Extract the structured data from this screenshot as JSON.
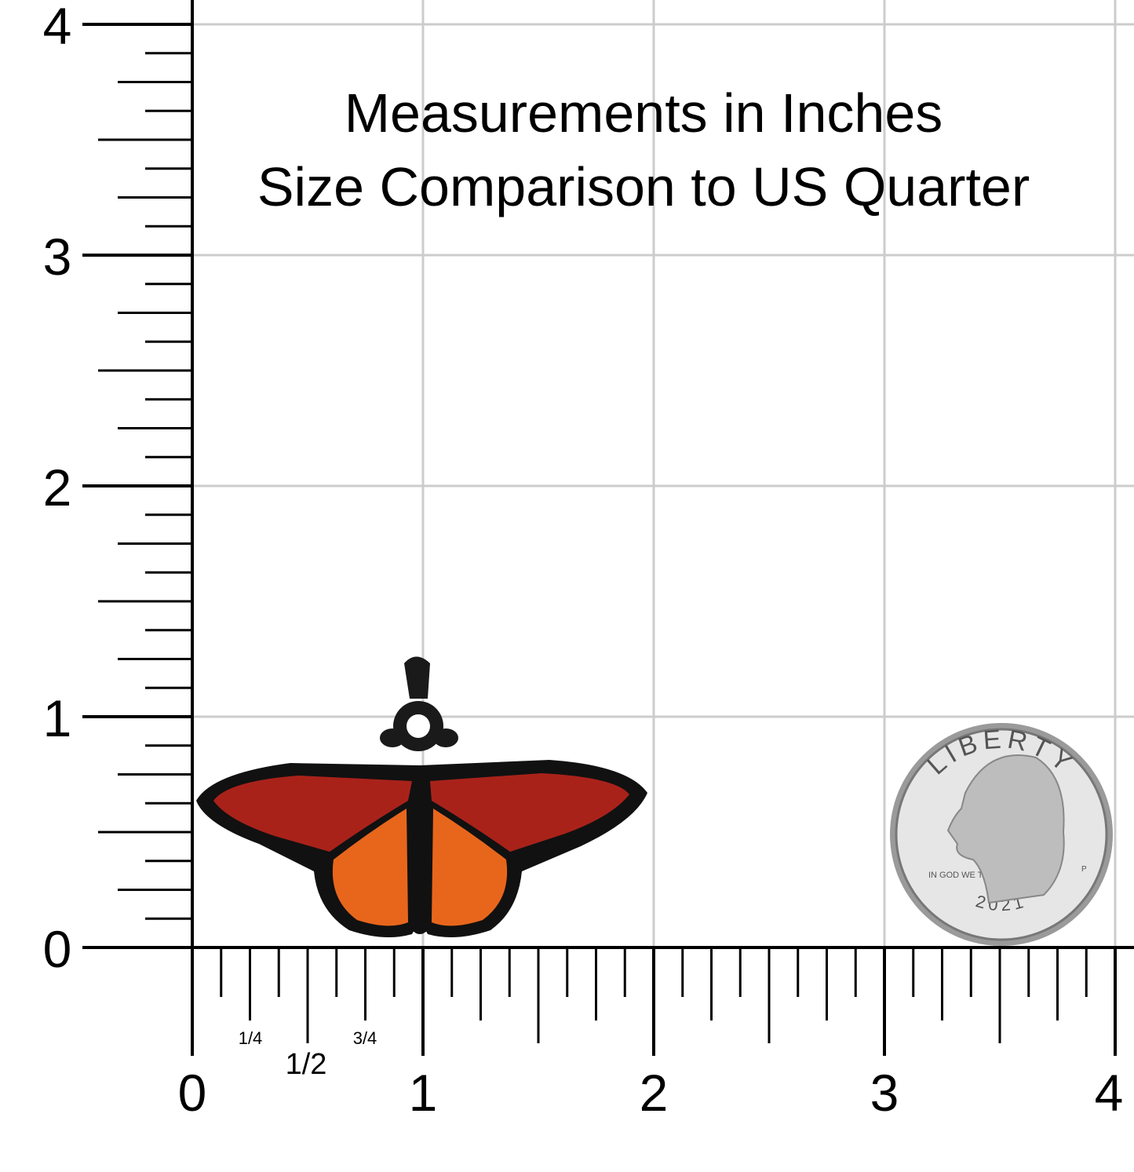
{
  "title": [
    "Measurements in Inches",
    "Size Comparison to US Quarter"
  ],
  "axes": {
    "x_ticks": [
      0,
      1,
      2,
      3,
      4
    ],
    "y_ticks": [
      0,
      1,
      2,
      3,
      4
    ],
    "fraction_labels": [
      "1/4",
      "1/2",
      "3/4"
    ]
  },
  "coin": {
    "top": "LIBERTY",
    "motto": "IN GOD WE TRUST",
    "year": "2021",
    "mint": "P"
  }
}
